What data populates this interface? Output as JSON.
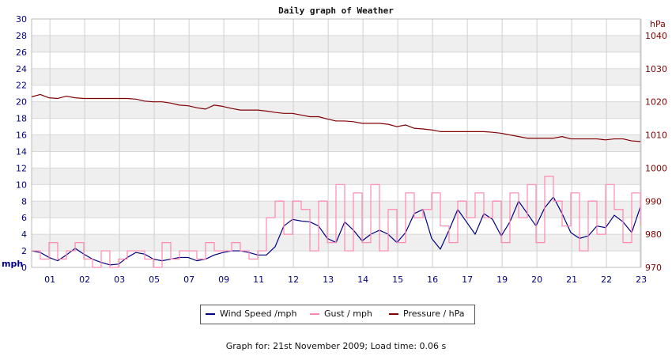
{
  "chart_data": {
    "type": "line",
    "title": "Daily graph of Weather",
    "left_axis": {
      "unit_label": "mph",
      "range": [
        0,
        30
      ],
      "ticks": [
        0,
        2,
        4,
        6,
        8,
        10,
        12,
        14,
        16,
        18,
        20,
        22,
        24,
        26,
        28,
        30
      ]
    },
    "right_axis": {
      "unit_label": "hPa",
      "range": [
        970,
        1045
      ],
      "ticks": [
        970,
        980,
        990,
        1000,
        1010,
        1020,
        1030,
        1040
      ]
    },
    "x_ticks": [
      "01",
      "02",
      "03",
      "05",
      "07",
      "09",
      "11",
      "12",
      "13",
      "14",
      "15",
      "16",
      "17",
      "19",
      "20",
      "21",
      "22",
      "23"
    ],
    "x_tick_hours": [
      1,
      2,
      3,
      4,
      5,
      6,
      7,
      8,
      9,
      10,
      11,
      12,
      13,
      14,
      15,
      16,
      17,
      18
    ],
    "grid": true,
    "legend_position": "bottom",
    "series": [
      {
        "name": "Wind Speed /mph",
        "axis": "left",
        "color": "#000080",
        "x": [
          0.0,
          0.5,
          1.0,
          1.5,
          2.0,
          2.5,
          3.0,
          3.5,
          4.0,
          4.5,
          5.0,
          5.5,
          6.0,
          6.5,
          7.0,
          7.5,
          8.0,
          8.5,
          9.0,
          9.5,
          10.0,
          10.5,
          11.0,
          11.5,
          12.0,
          12.5,
          13.0,
          13.5,
          14.0,
          14.5,
          15.0,
          15.5,
          16.0,
          16.5,
          17.0,
          17.5,
          18.0,
          18.5,
          19.0,
          19.5,
          20.0,
          20.5,
          21.0,
          21.5,
          22.0,
          22.5,
          23.0,
          23.5,
          24.0,
          24.5,
          25.0,
          25.5,
          26.0,
          26.5,
          27.0,
          27.5,
          28.0,
          28.5,
          29.0,
          29.5,
          30.0,
          30.5,
          31.0,
          31.5,
          32.0,
          32.5,
          33.0,
          33.5,
          34.0,
          34.5,
          35.0
        ],
        "y": [
          2.0,
          1.8,
          1.2,
          0.8,
          1.5,
          2.3,
          1.6,
          1.0,
          0.6,
          0.3,
          0.4,
          1.2,
          1.8,
          1.6,
          1.0,
          0.8,
          1.0,
          1.2,
          1.2,
          0.8,
          1.0,
          1.5,
          1.8,
          2.0,
          2.0,
          1.8,
          1.5,
          1.5,
          2.5,
          5.0,
          5.8,
          5.6,
          5.5,
          5.0,
          3.5,
          3.0,
          5.5,
          4.5,
          3.2,
          4.0,
          4.5,
          4.0,
          3.0,
          4.2,
          6.5,
          7.0,
          3.5,
          2.2,
          4.5,
          7.0,
          5.5,
          4.0,
          6.5,
          5.8,
          3.8,
          5.5,
          8.0,
          6.5,
          5.0,
          7.2,
          8.5,
          6.5,
          4.2,
          3.5,
          3.8,
          5.0,
          4.8,
          6.3,
          5.5,
          4.2,
          7.3
        ],
        "x_hours_note": "x values are hours of the day"
      },
      {
        "name": "Gust / mph",
        "axis": "left",
        "color": "#ff88b0",
        "x": [
          0.0,
          0.5,
          1.0,
          1.5,
          2.0,
          2.5,
          3.0,
          3.5,
          4.0,
          4.5,
          5.0,
          5.5,
          6.0,
          6.5,
          7.0,
          7.5,
          8.0,
          8.5,
          9.0,
          9.5,
          10.0,
          10.5,
          11.0,
          11.5,
          12.0,
          12.5,
          13.0,
          13.5,
          14.0,
          14.5,
          15.0,
          15.5,
          16.0,
          16.5,
          17.0,
          17.5,
          18.0,
          18.5,
          19.0,
          19.5,
          20.0,
          20.5,
          21.0,
          21.5,
          22.0,
          22.5,
          23.0,
          23.5,
          24.0,
          24.5,
          25.0,
          25.5,
          26.0,
          26.5,
          27.0,
          27.5,
          28.0,
          28.5,
          29.0,
          29.5,
          30.0,
          30.5,
          31.0,
          31.5,
          32.0,
          32.5,
          33.0,
          33.5,
          34.0,
          34.5,
          35.0
        ],
        "y": [
          2.0,
          1.0,
          3.0,
          1.0,
          2.0,
          3.0,
          1.0,
          0.0,
          2.0,
          0.0,
          1.0,
          2.0,
          2.0,
          1.0,
          0.0,
          3.0,
          1.0,
          2.0,
          2.0,
          1.0,
          3.0,
          2.0,
          2.0,
          3.0,
          2.0,
          1.0,
          2.0,
          6.0,
          8.0,
          4.0,
          8.0,
          7.0,
          2.0,
          8.0,
          3.0,
          10.0,
          2.0,
          9.0,
          3.0,
          10.0,
          2.0,
          7.0,
          3.0,
          9.0,
          6.0,
          7.0,
          9.0,
          5.0,
          3.0,
          8.0,
          6.0,
          9.0,
          6.0,
          8.0,
          3.0,
          9.0,
          6.0,
          10.0,
          3.0,
          11.0,
          8.0,
          5.0,
          9.0,
          2.0,
          8.0,
          4.0,
          10.0,
          7.0,
          3.0,
          9.0,
          5.0
        ],
        "x_hours_note": "x values are hours of the day"
      },
      {
        "name": "Pressure / hPa",
        "axis": "right",
        "color": "#800000",
        "x": [
          0.0,
          0.5,
          1.0,
          1.5,
          2.0,
          2.5,
          3.0,
          3.5,
          4.0,
          4.5,
          5.0,
          5.5,
          6.0,
          6.5,
          7.0,
          7.5,
          8.0,
          8.5,
          9.0,
          9.5,
          10.0,
          10.5,
          11.0,
          11.5,
          12.0,
          12.5,
          13.0,
          13.5,
          14.0,
          14.5,
          15.0,
          15.5,
          16.0,
          16.5,
          17.0,
          17.5,
          18.0,
          18.5,
          19.0,
          19.5,
          20.0,
          20.5,
          21.0,
          21.5,
          22.0,
          22.5,
          23.0,
          23.5,
          24.0,
          24.5,
          25.0,
          25.5,
          26.0,
          26.5,
          27.0,
          27.5,
          28.0,
          28.5,
          29.0,
          29.5,
          30.0,
          30.5,
          31.0,
          31.5,
          32.0,
          32.5,
          33.0,
          33.5,
          34.0,
          34.5,
          35.0
        ],
        "y": [
          1021.5,
          1022.2,
          1021.2,
          1021.0,
          1021.7,
          1021.2,
          1021.0,
          1021.0,
          1021.0,
          1021.0,
          1021.0,
          1021.0,
          1020.8,
          1020.2,
          1020.0,
          1020.0,
          1019.6,
          1019.0,
          1018.8,
          1018.2,
          1017.8,
          1019.0,
          1018.6,
          1018.0,
          1017.5,
          1017.5,
          1017.5,
          1017.2,
          1016.8,
          1016.5,
          1016.5,
          1016.0,
          1015.5,
          1015.5,
          1014.8,
          1014.2,
          1014.2,
          1014.0,
          1013.5,
          1013.5,
          1013.5,
          1013.2,
          1012.5,
          1013.0,
          1012.0,
          1011.8,
          1011.5,
          1011.0,
          1011.0,
          1011.0,
          1011.0,
          1011.0,
          1011.0,
          1010.8,
          1010.5,
          1010.0,
          1009.5,
          1009.0,
          1009.0,
          1009.0,
          1009.0,
          1009.5,
          1008.8,
          1008.8,
          1008.8,
          1008.8,
          1008.5,
          1008.8,
          1008.8,
          1008.2,
          1008.0
        ],
        "x_hours_note": "x values are hours of the day"
      }
    ]
  },
  "legend": [
    {
      "label": "Wind Speed /mph",
      "color": "#000080"
    },
    {
      "label": "Gust / mph",
      "color": "#ff88b0"
    },
    {
      "label": "Pressure / hPa",
      "color": "#800000"
    }
  ],
  "footer": "Graph for: 21st November 2009; Load time: 0.06 s"
}
